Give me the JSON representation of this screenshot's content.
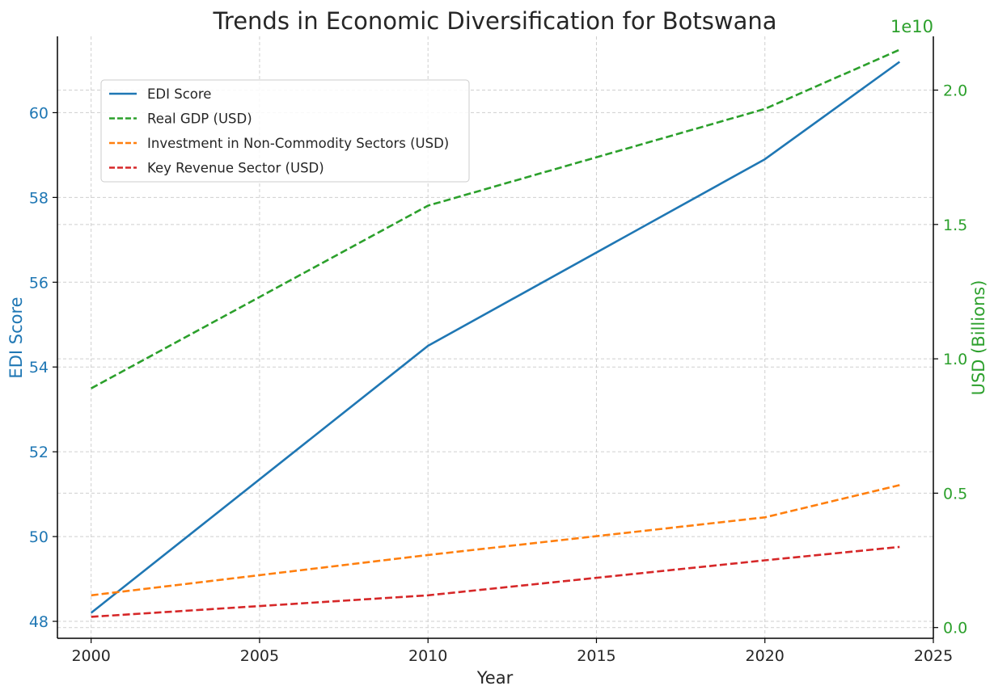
{
  "chart_data": {
    "type": "line",
    "title": "Trends in Economic Diversification for Botswana",
    "xlabel": "Year",
    "ylabel_left": "EDI Score",
    "ylabel_right": "USD (Billions)",
    "right_axis_offset_label": "1e10",
    "xlim": [
      1999,
      2025
    ],
    "ylim_left": [
      47.6,
      61.8
    ],
    "ylim_right": [
      -0.04,
      2.2
    ],
    "x_ticks": [
      2000,
      2005,
      2010,
      2015,
      2020,
      2025
    ],
    "y_ticks_left": [
      48,
      50,
      52,
      54,
      56,
      58,
      60
    ],
    "y_ticks_right": [
      0.0,
      0.5,
      1.0,
      1.5,
      2.0
    ],
    "y_tick_labels_right": [
      "0.0",
      "0.5",
      "1.0",
      "1.5",
      "2.0"
    ],
    "grid": true,
    "legend_position": "upper-left",
    "colors": {
      "left_axis": "#1f77b4",
      "right_axis": "#2ca02c"
    },
    "x": [
      2000,
      2010,
      2020,
      2024
    ],
    "series": [
      {
        "name": "EDI Score",
        "axis": "left",
        "color": "#1f77b4",
        "style": "solid",
        "values": [
          48.2,
          54.5,
          58.9,
          61.2
        ]
      },
      {
        "name": "Real GDP (USD)",
        "axis": "right",
        "color": "#2ca02c",
        "style": "dashed",
        "values": [
          0.89,
          1.57,
          1.93,
          2.15
        ]
      },
      {
        "name": "Investment in Non-Commodity Sectors (USD)",
        "axis": "right",
        "color": "#ff7f0e",
        "style": "dashed",
        "values": [
          0.12,
          0.27,
          0.41,
          0.53
        ]
      },
      {
        "name": "Key Revenue Sector (USD)",
        "axis": "right",
        "color": "#d62728",
        "style": "dashed",
        "values": [
          0.04,
          0.12,
          0.25,
          0.3
        ]
      }
    ]
  }
}
